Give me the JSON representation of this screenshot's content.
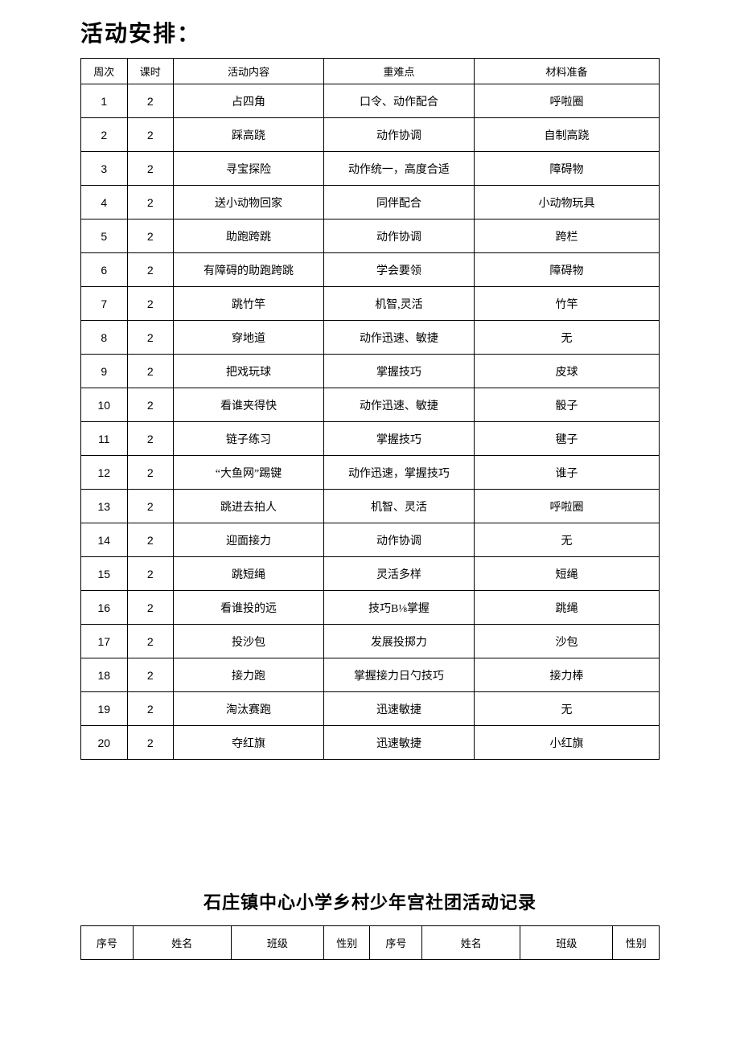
{
  "title": "活动安排：",
  "schedule": {
    "columns": [
      "周次",
      "课时",
      "活动内容",
      "重难点",
      "材料准备"
    ],
    "rows": [
      [
        "1",
        "2",
        "占四角",
        "口令、动作配合",
        "呼啦圈"
      ],
      [
        "2",
        "2",
        "踩高跷",
        "动作协调",
        "自制高跷"
      ],
      [
        "3",
        "2",
        "寻宝探险",
        "动作统一，高度合适",
        "障碍物"
      ],
      [
        "4",
        "2",
        "送小动物回家",
        "同伴配合",
        "小动物玩具"
      ],
      [
        "5",
        "2",
        "助跑跨跳",
        "动作协调",
        "跨栏"
      ],
      [
        "6",
        "2",
        "有障碍的助跑跨跳",
        "学会要领",
        "障碍物"
      ],
      [
        "7",
        "2",
        "跳竹竿",
        "机智,灵活",
        "竹竿"
      ],
      [
        "8",
        "2",
        "穿地道",
        "动作迅速、敏捷",
        "无"
      ],
      [
        "9",
        "2",
        "把戏玩球",
        "掌握技巧",
        "皮球"
      ],
      [
        "10",
        "2",
        "看谁夹得快",
        "动作迅速、敏捷",
        "骰子"
      ],
      [
        "11",
        "2",
        "链子练习",
        "掌握技巧",
        "毽子"
      ],
      [
        "12",
        "2",
        "“大鱼网”踢键",
        "动作迅速，掌握技巧",
        "谁子"
      ],
      [
        "13",
        "2",
        "跳进去拍人",
        "机智、灵活",
        "呼啦圈"
      ],
      [
        "14",
        "2",
        "迎面接力",
        "动作协调",
        "无"
      ],
      [
        "15",
        "2",
        "跳短绳",
        "灵活多样",
        "短绳"
      ],
      [
        "16",
        "2",
        "看谁投的远",
        "技巧В⅛掌握",
        "跳绳"
      ],
      [
        "17",
        "2",
        "投沙包",
        "发展投掷力",
        "沙包"
      ],
      [
        "18",
        "2",
        "接力跑",
        "掌握接力日勺技巧",
        "接力棒"
      ],
      [
        "19",
        "2",
        "淘汰赛跑",
        "迅速敏捷",
        "无"
      ],
      [
        "20",
        "2",
        "夺红旗",
        "迅速敏捷",
        "小红旗"
      ]
    ]
  },
  "footer_title": "石庄镇中心小学乡村少年宫社团活动记录",
  "roster": {
    "columns": [
      "序号",
      "姓名",
      "班级",
      "性别",
      "序号",
      "姓名",
      "班级",
      "性别"
    ]
  }
}
